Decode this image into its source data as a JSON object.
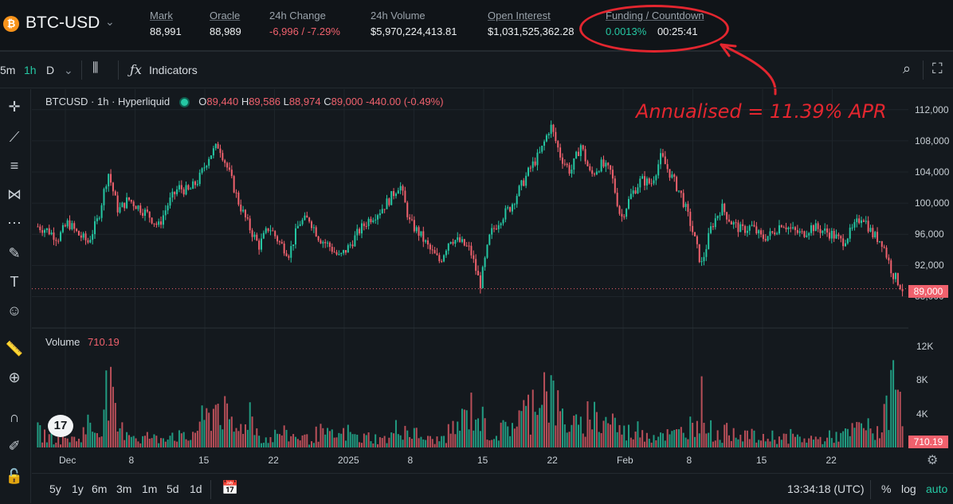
{
  "header": {
    "symbol": "BTC-USD",
    "icon": "bitcoin-icon",
    "stats": [
      {
        "label": "Mark",
        "value": "88,991"
      },
      {
        "label": "Oracle",
        "value": "88,989"
      },
      {
        "label": "24h Change",
        "value": "-6,996 / -7.29%"
      },
      {
        "label": "24h Volume",
        "value": "$5,970,224,413.81"
      },
      {
        "label": "Open Interest",
        "value": "$1,031,525,362.28"
      },
      {
        "label": "Funding / Countdown",
        "value": "0.0013%",
        "value2": "00:25:41"
      }
    ]
  },
  "annotation": {
    "text": "Annualised = 11.39% APR",
    "color": "#e3262f"
  },
  "toolbar": {
    "intervals": [
      "5m",
      "1h",
      "D"
    ],
    "active_interval": "1h",
    "indicators_label": "Indicators"
  },
  "legend": {
    "symbol_text": "BTCUSD · 1h · Hyperliquid",
    "o_key": "O",
    "o": "89,440",
    "h_key": "H",
    "h": "89,586",
    "l_key": "L",
    "l": "88,974",
    "c_key": "C",
    "c": "89,000",
    "change": "-440.00 (-0.49%)"
  },
  "volume_legend": {
    "label": "Volume",
    "value": "710.19"
  },
  "price_tag": "89,000",
  "volume_tag": "710.19",
  "bottom": {
    "ranges": [
      "5y",
      "1y",
      "6m",
      "3m",
      "1m",
      "5d",
      "1d"
    ],
    "time": "13:34:18 (UTC)",
    "pct": "%",
    "log": "log",
    "auto": "auto"
  },
  "chart_data": {
    "type": "candlestick",
    "price_axis_ticks": [
      "112,000",
      "108,000",
      "104,000",
      "100,000",
      "96,000",
      "92,000",
      "88,000"
    ],
    "volume_axis_ticks": [
      "12K",
      "8K",
      "4K"
    ],
    "x_ticks": [
      "Dec",
      "8",
      "15",
      "22",
      "2025",
      "8",
      "15",
      "22",
      "Feb",
      "8",
      "15",
      "22"
    ],
    "price_ylim": [
      86000,
      113000
    ],
    "close_series": [
      97000,
      96500,
      95500,
      97500,
      96000,
      95000,
      98000,
      104000,
      99000,
      100500,
      99500,
      98500,
      97000,
      100000,
      102000,
      101500,
      103000,
      106000,
      107500,
      104000,
      100000,
      97000,
      94500,
      97000,
      95000,
      93500,
      97500,
      98000,
      95500,
      94500,
      93000,
      94500,
      96500,
      98000,
      99000,
      100500,
      102500,
      97500,
      96000,
      94000,
      92500,
      95500,
      95000,
      94000,
      89500,
      96000,
      98000,
      99500,
      102000,
      104500,
      106500,
      110000,
      106000,
      104000,
      107500,
      103500,
      105000,
      104000,
      98000,
      101000,
      103000,
      102500,
      106000,
      103500,
      101000,
      97000,
      92000,
      97000,
      99500,
      97500,
      96500,
      97000,
      95500,
      96000,
      97500,
      96500,
      96000,
      97000,
      96500,
      96000,
      95000,
      96500,
      98500,
      96000,
      95000,
      91000,
      89000
    ],
    "volume_series": [
      2,
      1.5,
      1,
      1.2,
      1,
      3,
      2,
      8,
      2,
      2.5,
      1,
      1.5,
      1,
      2,
      1.5,
      1,
      3,
      4,
      6,
      3,
      2,
      5,
      1.5,
      1,
      2,
      1.5,
      1.5,
      1,
      2,
      1.5,
      1.5,
      2,
      1,
      1.5,
      1,
      1.2,
      3,
      2,
      1.5,
      1,
      1,
      2,
      3,
      5,
      4,
      1.5,
      2,
      3,
      4,
      5,
      9,
      7,
      4,
      3,
      2.5,
      5,
      3,
      4,
      2,
      2,
      2.5,
      1.5,
      2,
      1.5,
      2,
      3,
      6,
      2,
      1.5,
      2.5,
      2,
      1.5,
      1,
      1.5,
      1.2,
      1.5,
      1,
      1.2,
      1,
      1.5,
      1.5,
      2,
      3,
      2,
      2.5,
      8,
      7
    ],
    "volume_ylim": [
      0,
      13000
    ],
    "last_price": 89000,
    "up_color": "#25c7a3",
    "down_color": "#f0616d"
  }
}
